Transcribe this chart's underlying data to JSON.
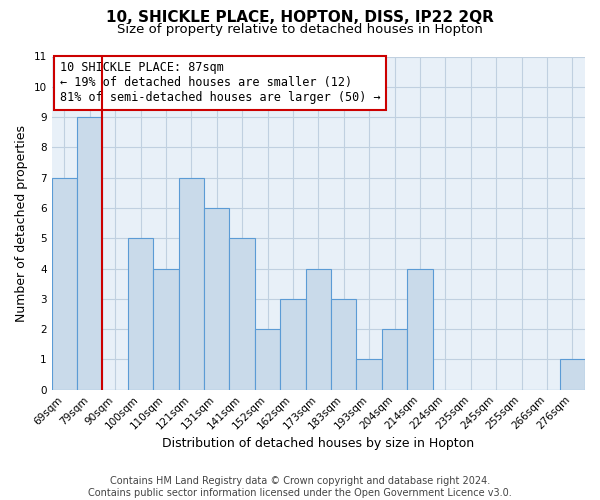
{
  "title": "10, SHICKLE PLACE, HOPTON, DISS, IP22 2QR",
  "subtitle": "Size of property relative to detached houses in Hopton",
  "xlabel": "Distribution of detached houses by size in Hopton",
  "ylabel": "Number of detached properties",
  "bin_labels": [
    "69sqm",
    "79sqm",
    "90sqm",
    "100sqm",
    "110sqm",
    "121sqm",
    "131sqm",
    "141sqm",
    "152sqm",
    "162sqm",
    "173sqm",
    "183sqm",
    "193sqm",
    "204sqm",
    "214sqm",
    "224sqm",
    "235sqm",
    "245sqm",
    "255sqm",
    "266sqm",
    "276sqm"
  ],
  "bin_counts": [
    7,
    9,
    0,
    5,
    4,
    7,
    6,
    5,
    2,
    3,
    4,
    3,
    1,
    2,
    4,
    0,
    0,
    0,
    0,
    0,
    1
  ],
  "bar_color": "#c9daea",
  "bar_edge_color": "#5b9bd5",
  "vline_color": "#cc0000",
  "vline_position": 1.5,
  "annotation_line1": "10 SHICKLE PLACE: 87sqm",
  "annotation_line2": "← 19% of detached houses are smaller (12)",
  "annotation_line3": "81% of semi-detached houses are larger (50) →",
  "box_edge_color": "#cc0000",
  "ylim": [
    0,
    11
  ],
  "yticks": [
    0,
    1,
    2,
    3,
    4,
    5,
    6,
    7,
    8,
    9,
    10,
    11
  ],
  "footer1": "Contains HM Land Registry data © Crown copyright and database right 2024.",
  "footer2": "Contains public sector information licensed under the Open Government Licence v3.0.",
  "background_color": "#ffffff",
  "plot_bg_color": "#e8f0f8",
  "grid_color": "#c0d0e0",
  "title_fontsize": 11,
  "subtitle_fontsize": 9.5,
  "axis_label_fontsize": 9,
  "tick_fontsize": 7.5,
  "annotation_fontsize": 8.5,
  "footer_fontsize": 7
}
